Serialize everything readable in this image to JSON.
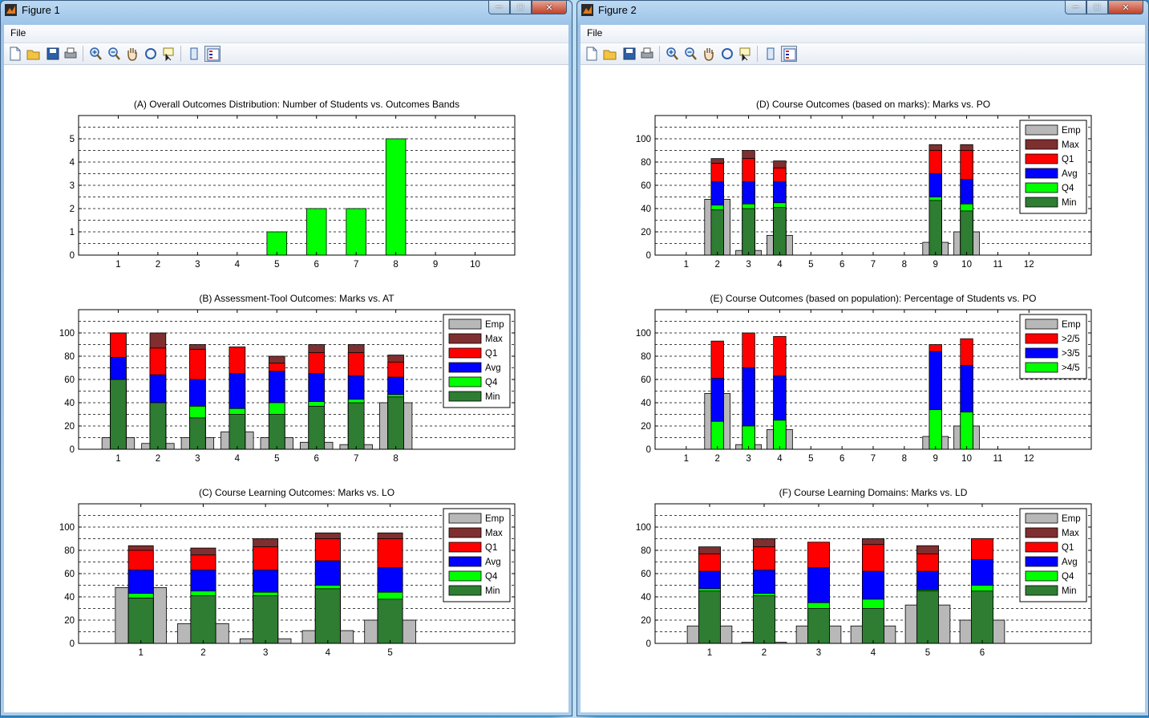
{
  "windows": [
    {
      "title": "Figure 1",
      "menu": {
        "file": "File"
      },
      "toolbar": [
        "new-figure-icon",
        "open-file-icon",
        "save-icon",
        "print-icon",
        "zoom-in-icon",
        "zoom-out-icon",
        "pan-hand-icon",
        "rotate-3d-icon",
        "data-cursor-icon",
        "hide-plot-tools-icon",
        "show-plot-tools-icon"
      ],
      "axes": [
        {
          "title": "(A) Overall Outcomes Distribution: Number of Students vs. Outcomes Bands",
          "chart_data": {
            "type": "bar",
            "categories": [
              "1",
              "2",
              "3",
              "4",
              "5",
              "6",
              "7",
              "8",
              "9",
              "10"
            ],
            "xlim": [
              0,
              11
            ],
            "ylim": [
              0,
              6
            ],
            "yticks": [
              0,
              1,
              2,
              3,
              4,
              5
            ],
            "grid_y": [
              0.5,
              1,
              1.5,
              2,
              2.5,
              3,
              3.5,
              4,
              4.5,
              5,
              5.5,
              6
            ],
            "series": [
              {
                "values": [
                  0,
                  0,
                  0,
                  0,
                  1,
                  2,
                  2,
                  5,
                  0,
                  0
                ],
                "color": "#00ff00"
              }
            ]
          }
        },
        {
          "title": "(B) Assessment-Tool Outcomes: Marks vs. AT",
          "chart_data": {
            "type": "bar",
            "categories": [
              "1",
              "2",
              "3",
              "4",
              "5",
              "6",
              "7",
              "8"
            ],
            "xlim": [
              0,
              11
            ],
            "ylim": [
              0,
              120
            ],
            "yticks": [
              0,
              20,
              40,
              60,
              80,
              100
            ],
            "grid_y": [
              10,
              20,
              30,
              40,
              50,
              60,
              70,
              80,
              90,
              100,
              110,
              120
            ],
            "legend": [
              "Emp",
              "Max",
              "Q1",
              "Avg",
              "Q4",
              "Min"
            ],
            "legend_location": "top-right",
            "min": [
              60,
              40,
              27,
              30,
              30,
              37,
              40,
              45
            ],
            "q4": [
              60,
              40,
              37,
              35,
              40,
              41,
              43,
              47
            ],
            "avg": [
              79,
              64,
              60,
              65,
              67,
              65,
              63,
              62
            ],
            "q1": [
              100,
              87,
              86,
              88,
              74,
              83,
              83,
              75
            ],
            "max": [
              100,
              100,
              90,
              88,
              80,
              90,
              90,
              81
            ],
            "emp": [
              10,
              5,
              10,
              15,
              10,
              6,
              4,
              40
            ]
          }
        },
        {
          "title": "(C) Course Learning Outcomes: Marks vs. LO",
          "chart_data": {
            "type": "bar",
            "categories": [
              "1",
              "2",
              "3",
              "4",
              "5"
            ],
            "xlim": [
              0,
              7
            ],
            "ylim": [
              0,
              120
            ],
            "yticks": [
              0,
              20,
              40,
              60,
              80,
              100
            ],
            "grid_y": [
              10,
              20,
              30,
              40,
              50,
              60,
              70,
              80,
              90,
              100,
              110,
              120
            ],
            "legend": [
              "Emp",
              "Max",
              "Q1",
              "Avg",
              "Q4",
              "Min"
            ],
            "legend_location": "top-right",
            "min": [
              39,
              41,
              41,
              47,
              38
            ],
            "q4": [
              43,
              45,
              44,
              50,
              44
            ],
            "avg": [
              63,
              63,
              63,
              71,
              65
            ],
            "q1": [
              80,
              76,
              83,
              90,
              90
            ],
            "max": [
              84,
              82,
              90,
              95,
              95
            ],
            "emp": [
              48,
              17,
              4,
              11,
              20
            ]
          }
        }
      ]
    },
    {
      "title": "Figure 2",
      "menu": {
        "file": "File"
      },
      "toolbar": [
        "new-figure-icon",
        "open-file-icon",
        "save-icon",
        "print-icon",
        "zoom-in-icon",
        "zoom-out-icon",
        "pan-hand-icon",
        "rotate-3d-icon",
        "data-cursor-icon",
        "hide-plot-tools-icon",
        "show-plot-tools-icon"
      ],
      "axes": [
        {
          "title": "(D) Course Outcomes (based on marks): Marks vs. PO",
          "chart_data": {
            "type": "bar",
            "categories": [
              "1",
              "2",
              "3",
              "4",
              "5",
              "6",
              "7",
              "8",
              "9",
              "10",
              "11",
              "12"
            ],
            "xlim": [
              0,
              14
            ],
            "ylim": [
              0,
              120
            ],
            "yticks": [
              0,
              20,
              40,
              60,
              80,
              100
            ],
            "grid_y": [
              10,
              20,
              30,
              40,
              50,
              60,
              70,
              80,
              90,
              100,
              110,
              120
            ],
            "legend": [
              "Emp",
              "Max",
              "Q1",
              "Avg",
              "Q4",
              "Min"
            ],
            "legend_location": "top-right",
            "bars_at": [
              2,
              3,
              4,
              9,
              10
            ],
            "min": [
              39,
              40,
              41,
              47,
              38
            ],
            "q4": [
              43,
              44,
              45,
              50,
              44
            ],
            "avg": [
              63,
              63,
              63,
              70,
              65
            ],
            "q1": [
              79,
              83,
              75,
              90,
              90
            ],
            "max": [
              83,
              90,
              81,
              95,
              95
            ],
            "emp": [
              48,
              4,
              17,
              11,
              20
            ]
          }
        },
        {
          "title": "(E) Course Outcomes (based on population): Percentage of Students vs. PO",
          "chart_data": {
            "type": "bar",
            "categories": [
              "1",
              "2",
              "3",
              "4",
              "5",
              "6",
              "7",
              "8",
              "9",
              "10",
              "11",
              "12"
            ],
            "xlim": [
              0,
              14
            ],
            "ylim": [
              0,
              120
            ],
            "yticks": [
              0,
              20,
              40,
              60,
              80,
              100
            ],
            "grid_y": [
              10,
              20,
              30,
              40,
              50,
              60,
              70,
              80,
              90,
              100,
              110,
              120
            ],
            "legend": [
              "Emp",
              ">2/5",
              ">3/5",
              ">4/5"
            ],
            "legend_location": "top-right",
            "bars_at": [
              2,
              3,
              4,
              9,
              10
            ],
            "g45": [
              24,
              20,
              25,
              34,
              32
            ],
            "g35": [
              61,
              70,
              63,
              84,
              72
            ],
            "g25": [
              93,
              100,
              97,
              90,
              95
            ],
            "emp": [
              48,
              4,
              17,
              11,
              20
            ]
          }
        },
        {
          "title": "(F) Course Learning Domains: Marks vs. LD",
          "chart_data": {
            "type": "bar",
            "categories": [
              "1",
              "2",
              "3",
              "4",
              "5",
              "6"
            ],
            "xlim": [
              0,
              8
            ],
            "ylim": [
              0,
              120
            ],
            "yticks": [
              0,
              20,
              40,
              60,
              80,
              100
            ],
            "grid_y": [
              10,
              20,
              30,
              40,
              50,
              60,
              70,
              80,
              90,
              100,
              110,
              120
            ],
            "legend": [
              "Emp",
              "Max",
              "Q1",
              "Avg",
              "Q4",
              "Min"
            ],
            "legend_location": "top-right",
            "min": [
              45,
              41,
              30,
              30,
              45,
              45
            ],
            "q4": [
              47,
              43,
              35,
              38,
              46,
              50
            ],
            "avg": [
              62,
              63,
              65,
              62,
              62,
              72
            ],
            "q1": [
              77,
              83,
              87,
              85,
              77,
              90
            ],
            "max": [
              83,
              90,
              87,
              90,
              84,
              90
            ],
            "emp": [
              15,
              1,
              15,
              15,
              33,
              20
            ]
          }
        }
      ]
    }
  ],
  "colors": {
    "emp": "#b8b8b8",
    "max": "#7f2f2f",
    "q1": "#ff0000",
    "avg": "#0000ff",
    "q4": "#00ff00",
    "min": "#2e7d32",
    "g25": "#ff0000",
    "g35": "#0000ff",
    "g45": "#00ff00"
  }
}
